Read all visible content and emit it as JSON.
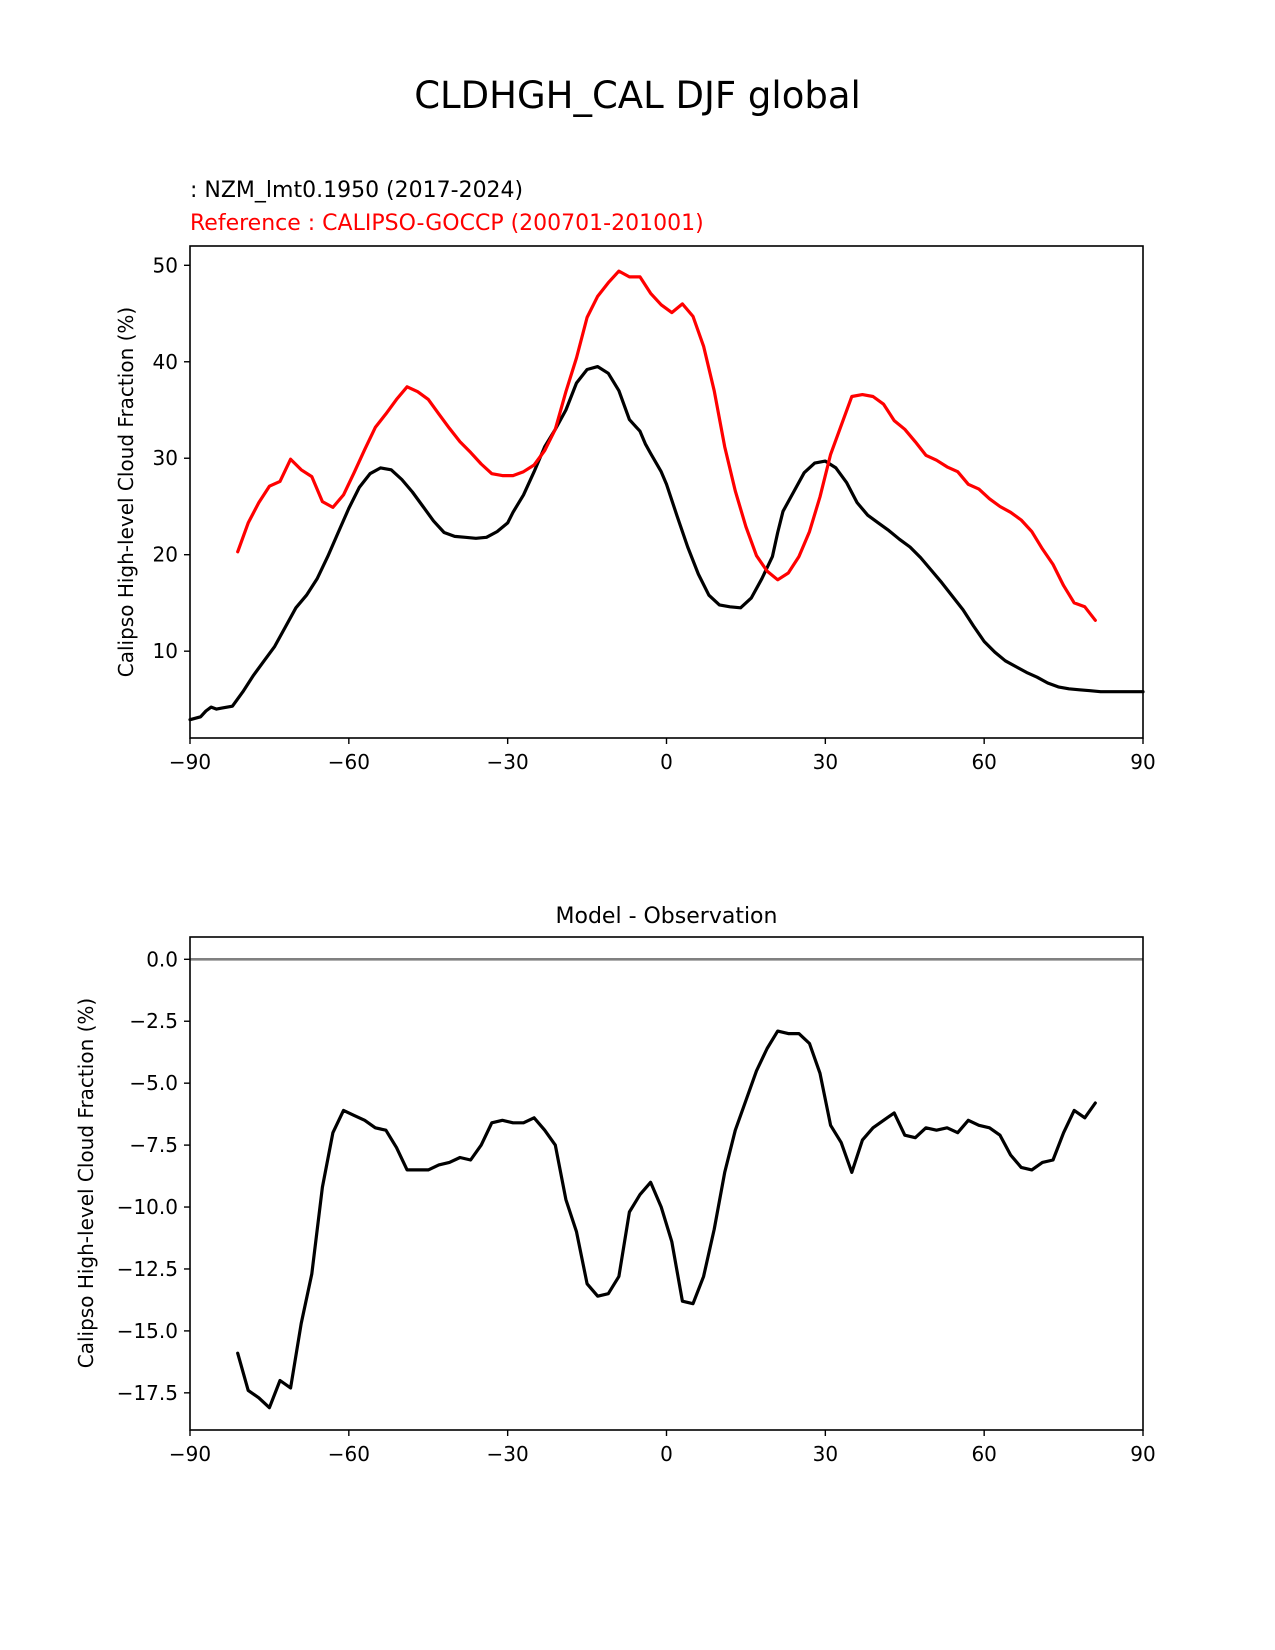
{
  "figure": {
    "title": "CLDHGH_CAL DJF global"
  },
  "legend": {
    "test_label": " : NZM_lmt0.1950 (2017-2024)",
    "ref_label": "Reference : CALIPSO-GOCCP (200701-201001)",
    "test_color": "#000000",
    "ref_color": "#ff0000"
  },
  "chart_data": [
    {
      "type": "line",
      "title": "",
      "xlabel": "",
      "ylabel": "Calipso High-level Cloud Fraction (%)",
      "xlim": [
        -90,
        90
      ],
      "ylim": [
        1,
        52
      ],
      "xticks": [
        -90,
        -60,
        -30,
        0,
        30,
        60,
        90
      ],
      "xtick_labels": [
        "−90",
        "−60",
        "−30",
        "0",
        "30",
        "60",
        "90"
      ],
      "yticks": [
        10,
        20,
        30,
        40,
        50
      ],
      "ytick_labels": [
        "10",
        "20",
        "30",
        "40",
        "50"
      ],
      "series": [
        {
          "name": "NZM_lmt0.1950 (2017-2024)",
          "color": "#000000",
          "x": [
            -90,
            -88,
            -87,
            -86,
            -85,
            -84,
            -82,
            -80,
            -78,
            -76,
            -74,
            -72,
            -70,
            -68,
            -66,
            -64,
            -62,
            -60,
            -58,
            -56,
            -54,
            -52,
            -50,
            -48,
            -46,
            -44,
            -42,
            -40,
            -38,
            -36,
            -34,
            -32,
            -30,
            -29,
            -27,
            -25,
            -23,
            -21,
            -19,
            -17,
            -15,
            -13,
            -11,
            -9,
            -7,
            -5,
            -4,
            -3,
            -1,
            0,
            2,
            4,
            6,
            8,
            10,
            12,
            14,
            16,
            18,
            20,
            21,
            22,
            24,
            26,
            28,
            30,
            32,
            34,
            36,
            38,
            40,
            42,
            44,
            46,
            48,
            50,
            52,
            54,
            56,
            58,
            60,
            62,
            64,
            66,
            68,
            70,
            72,
            74,
            76,
            78,
            80,
            82,
            84,
            86,
            88,
            90
          ],
          "y": [
            2.9,
            3.2,
            3.8,
            4.2,
            4.0,
            4.1,
            4.3,
            5.8,
            7.5,
            9.0,
            10.5,
            12.5,
            14.5,
            15.8,
            17.5,
            19.8,
            22.3,
            24.8,
            27.0,
            28.4,
            29.0,
            28.8,
            27.8,
            26.5,
            25.0,
            23.5,
            22.3,
            21.9,
            21.8,
            21.7,
            21.8,
            22.4,
            23.3,
            24.4,
            26.2,
            28.6,
            31.2,
            33.0,
            35.0,
            37.8,
            39.2,
            39.5,
            38.8,
            37.0,
            34.0,
            32.8,
            31.5,
            30.5,
            28.6,
            27.3,
            24.0,
            20.8,
            18.0,
            15.8,
            14.8,
            14.6,
            14.5,
            15.5,
            17.5,
            19.8,
            22.3,
            24.5,
            26.5,
            28.5,
            29.5,
            29.7,
            29.0,
            27.5,
            25.4,
            24.1,
            23.3,
            22.5,
            21.6,
            20.8,
            19.7,
            18.4,
            17.1,
            15.7,
            14.3,
            12.6,
            11.0,
            9.9,
            9.0,
            8.4,
            7.8,
            7.3,
            6.7,
            6.3,
            6.1,
            6.0,
            5.9,
            5.8,
            5.8,
            5.8,
            5.8,
            5.8
          ],
          "note": "x in degrees latitude, y in percent"
        },
        {
          "name": "CALIPSO-GOCCP (200701-201001)",
          "color": "#ff0000",
          "x": [
            -81,
            -79,
            -77,
            -75,
            -73,
            -71,
            -69,
            -67,
            -65,
            -63,
            -61,
            -59,
            -57,
            -55,
            -53,
            -51,
            -49,
            -47,
            -45,
            -43,
            -41,
            -39,
            -37,
            -35,
            -33,
            -31,
            -29,
            -27,
            -25,
            -23,
            -21,
            -19,
            -17,
            -15,
            -13,
            -11,
            -9,
            -7,
            -5,
            -3,
            -1,
            1,
            3,
            5,
            7,
            9,
            11,
            13,
            15,
            17,
            19,
            21,
            23,
            25,
            27,
            29,
            31,
            33,
            35,
            37,
            39,
            41,
            43,
            45,
            47,
            49,
            51,
            53,
            55,
            57,
            59,
            61,
            63,
            65,
            67,
            69,
            71,
            73,
            75,
            77,
            79,
            81
          ],
          "y": [
            20.3,
            23.3,
            25.4,
            27.1,
            27.6,
            29.9,
            28.8,
            28.1,
            25.5,
            24.9,
            26.2,
            28.5,
            30.9,
            33.2,
            34.6,
            36.1,
            37.4,
            36.9,
            36.1,
            34.6,
            33.1,
            31.7,
            30.6,
            29.4,
            28.4,
            28.2,
            28.2,
            28.6,
            29.3,
            30.8,
            33.0,
            36.9,
            40.4,
            44.6,
            46.8,
            48.2,
            49.4,
            48.8,
            48.8,
            47.1,
            45.9,
            45.1,
            46.0,
            44.7,
            41.6,
            37.0,
            31.2,
            26.6,
            22.9,
            19.9,
            18.3,
            17.4,
            18.1,
            19.8,
            22.4,
            26.0,
            30.4,
            33.4,
            36.4,
            36.6,
            36.4,
            35.6,
            33.9,
            33.0,
            31.7,
            30.3,
            29.8,
            29.1,
            28.6,
            27.3,
            26.8,
            25.8,
            25.0,
            24.4,
            23.6,
            22.4,
            20.6,
            19.0,
            16.8,
            15.0,
            14.6,
            13.2
          ],
          "note": "x in degrees latitude, y in percent"
        }
      ]
    },
    {
      "type": "line",
      "title": "Model - Observation",
      "xlabel": "",
      "ylabel": "Calipso High-level Cloud Fraction (%)",
      "xlim": [
        -90,
        90
      ],
      "ylim": [
        -19,
        0.9
      ],
      "xticks": [
        -90,
        -60,
        -30,
        0,
        30,
        60,
        90
      ],
      "xtick_labels": [
        "−90",
        "−60",
        "−30",
        "0",
        "30",
        "60",
        "90"
      ],
      "yticks": [
        0,
        -2.5,
        -5,
        -7.5,
        -10,
        -12.5,
        -15,
        -17.5
      ],
      "ytick_labels": [
        "0.0",
        "−2.5",
        "−5.0",
        "−7.5",
        "−10.0",
        "−12.5",
        "−15.0",
        "−17.5"
      ],
      "reference_line": {
        "y": 0,
        "color": "#808080"
      },
      "series": [
        {
          "name": "Model - Observation",
          "color": "#000000",
          "x": [
            -81,
            -79,
            -77,
            -75,
            -73,
            -71,
            -69,
            -67,
            -65,
            -63,
            -61,
            -59,
            -57,
            -55,
            -53,
            -51,
            -49,
            -47,
            -45,
            -43,
            -41,
            -39,
            -37,
            -35,
            -33,
            -31,
            -29,
            -27,
            -25,
            -23,
            -21,
            -19,
            -17,
            -15,
            -13,
            -11,
            -9,
            -7,
            -5,
            -3,
            -1,
            1,
            3,
            5,
            7,
            9,
            11,
            13,
            15,
            17,
            19,
            21,
            23,
            25,
            27,
            29,
            31,
            33,
            35,
            37,
            39,
            41,
            43,
            45,
            47,
            49,
            51,
            53,
            55,
            57,
            59,
            61,
            63,
            65,
            67,
            69,
            71,
            73,
            75,
            77,
            79,
            81
          ],
          "y": [
            -15.9,
            -17.4,
            -17.7,
            -18.1,
            -17.0,
            -17.3,
            -14.7,
            -12.7,
            -9.2,
            -7.0,
            -6.1,
            -6.3,
            -6.5,
            -6.8,
            -6.9,
            -7.6,
            -8.5,
            -8.5,
            -8.5,
            -8.3,
            -8.2,
            -8.0,
            -8.1,
            -7.5,
            -6.6,
            -6.5,
            -6.6,
            -6.6,
            -6.4,
            -6.9,
            -7.5,
            -9.7,
            -11.0,
            -13.1,
            -13.6,
            -13.5,
            -12.8,
            -10.2,
            -9.5,
            -9.0,
            -10.0,
            -11.4,
            -13.8,
            -13.9,
            -12.8,
            -10.9,
            -8.6,
            -6.9,
            -5.7,
            -4.5,
            -3.6,
            -2.9,
            -3.0,
            -3.0,
            -3.4,
            -4.6,
            -6.7,
            -7.4,
            -8.6,
            -7.3,
            -6.8,
            -6.5,
            -6.2,
            -7.1,
            -7.2,
            -6.8,
            -6.9,
            -6.8,
            -7.0,
            -6.5,
            -6.7,
            -6.8,
            -7.1,
            -7.9,
            -8.4,
            -8.5,
            -8.2,
            -8.1,
            -7.0,
            -6.1,
            -6.4,
            -5.8
          ],
          "note": "x in degrees latitude, y in percent"
        }
      ]
    }
  ]
}
